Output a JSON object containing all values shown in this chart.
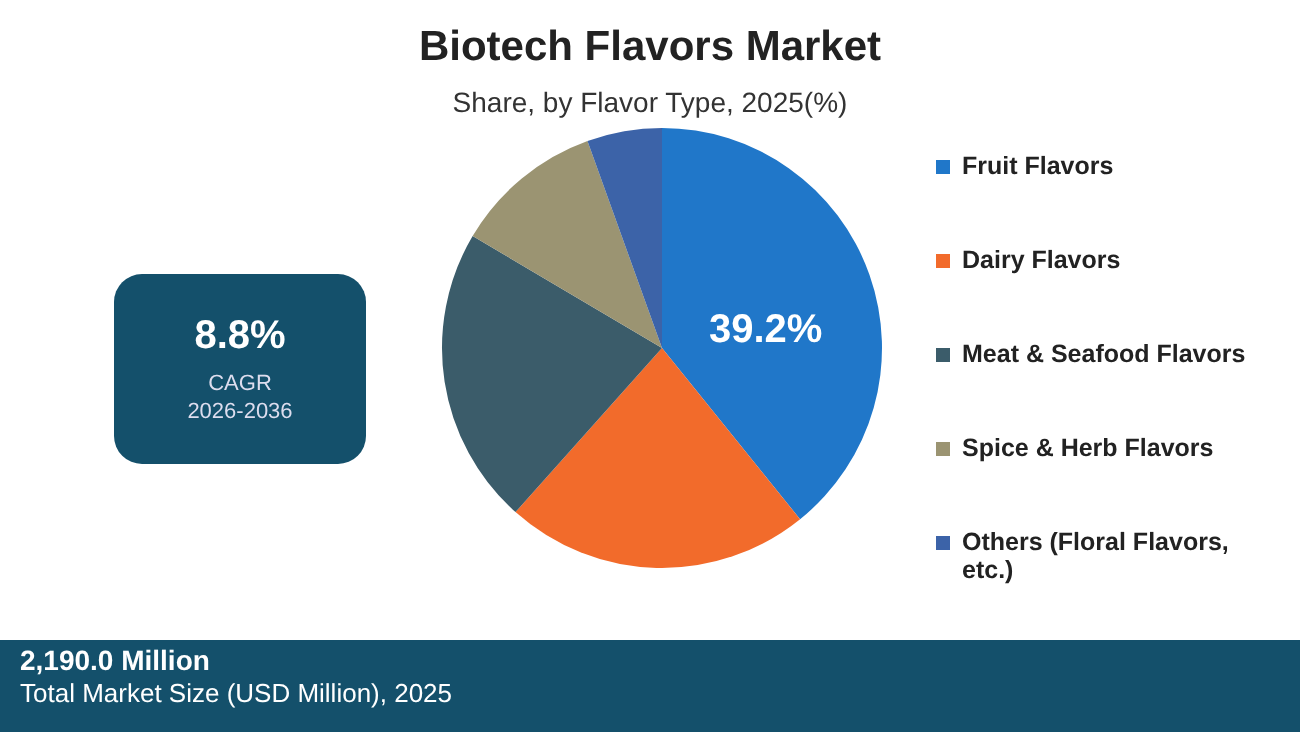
{
  "chart_data": {
    "type": "pie",
    "title": "Biotech Flavors Market",
    "subtitle": "Share, by Flavor Type, 2025(%)",
    "categories": [
      "Fruit Flavors",
      "Dairy Flavors",
      "Meat & Seafood Flavors",
      "Spice & Herb Flavors",
      "Others (Floral Flavors, etc.)"
    ],
    "values": [
      39.2,
      22.4,
      21.9,
      11.0,
      5.5
    ],
    "colors": [
      "#2077c9",
      "#f26b2b",
      "#3b5c6a",
      "#9b9472",
      "#3c63a8"
    ],
    "value_labels": [
      "39.2%",
      null,
      null,
      null,
      null
    ],
    "legend": "right",
    "annotations": [
      "8.8%",
      "CAGR",
      "2026-2036",
      "2,190.0 Million",
      "Total Market Size (USD Million), 2025"
    ]
  }
}
